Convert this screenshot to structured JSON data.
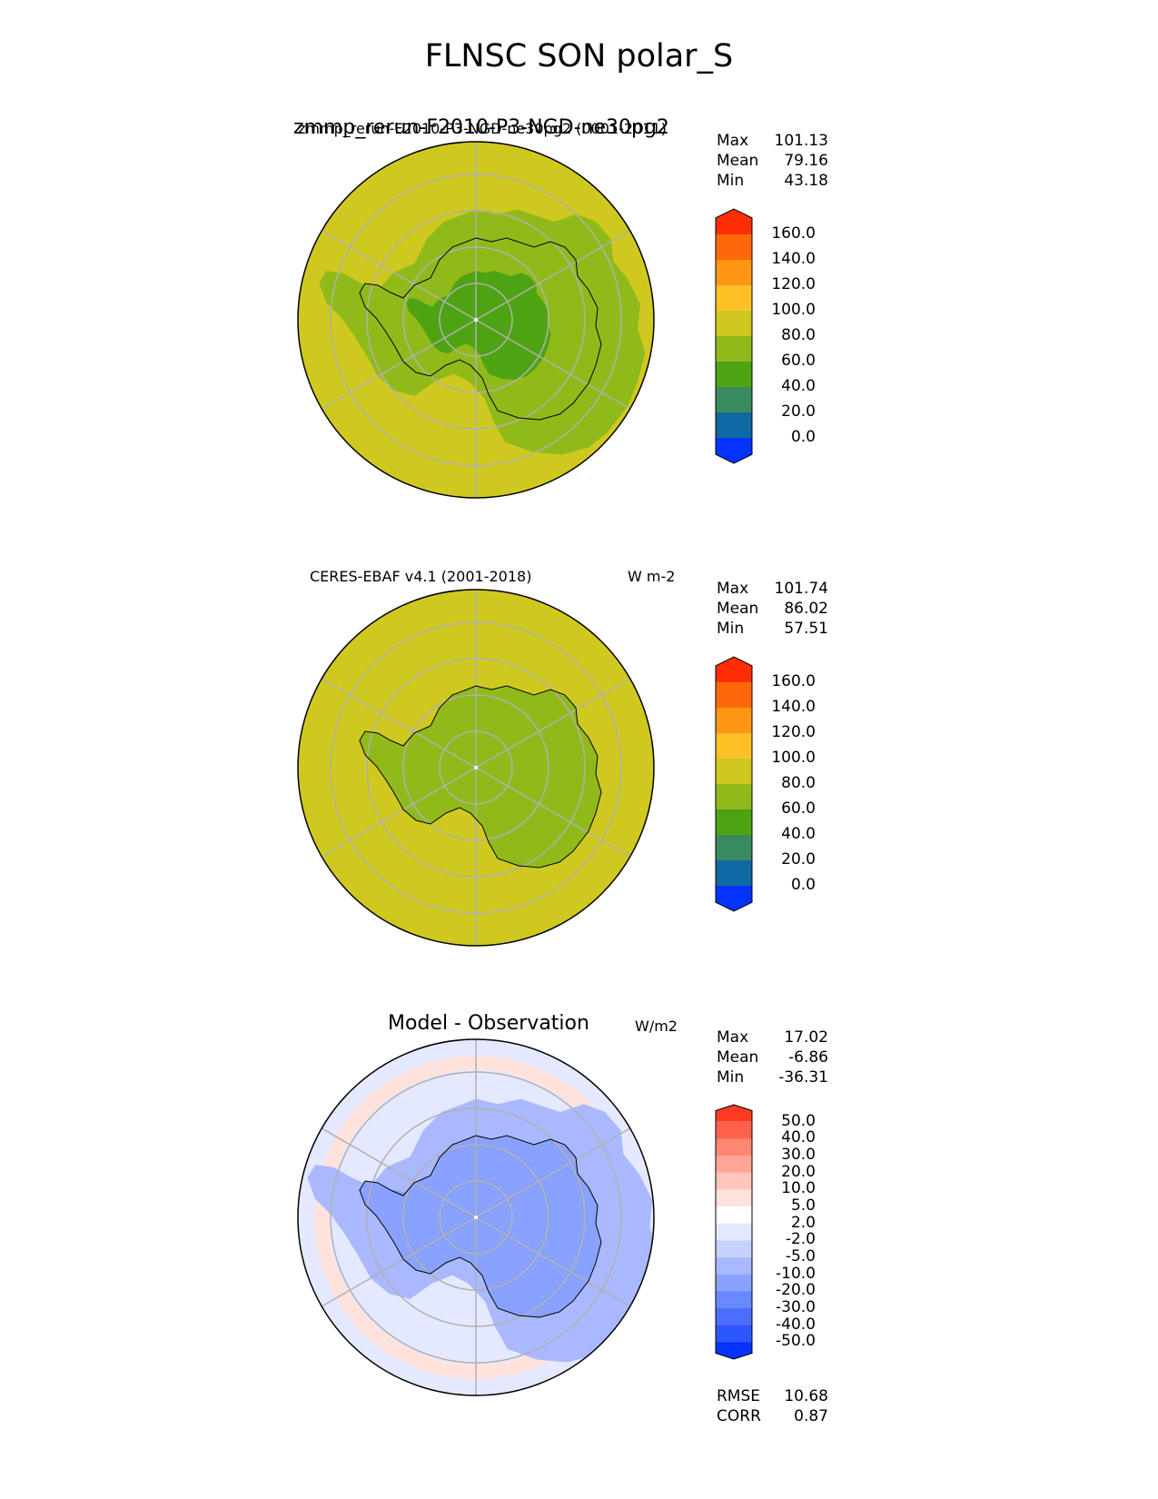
{
  "figure_title": "FLNSC SON polar_S",
  "colors": {
    "grid": "#b0b0b0",
    "coast": "#000000",
    "field_cmap": [
      "#0433ff",
      "#0f69a2",
      "#3a8a60",
      "#4ea313",
      "#90ba1a",
      "#cfc91f",
      "#fec126",
      "#ff9614",
      "#ff680a",
      "#ff2d04"
    ],
    "diff_cmap": [
      "#0433ff",
      "#2d56ff",
      "#4b6eff",
      "#6a88ff",
      "#8aa2ff",
      "#aab9ff",
      "#c8d2ff",
      "#e4e9ff",
      "#ffffff",
      "#ffe2dc",
      "#ffc6bb",
      "#ffa797",
      "#ff8673",
      "#ff614d",
      "#ff3a20"
    ]
  },
  "panels": [
    {
      "id": "test",
      "title_overlap_a": "zmmp_rerun-F2010-P3-NGD-ne30pg2",
      "title_overlap_b": "zmmp_rerun-F2010-P3-NGD-ne30pg2 (0001-2011)",
      "units": "",
      "stats": {
        "labels": [
          "Max",
          "Mean",
          "Min"
        ],
        "values": [
          "101.13",
          "79.16",
          "43.18"
        ]
      },
      "colorbar_labels": [
        "160.0",
        "140.0",
        "120.0",
        "100.0",
        "80.0",
        "60.0",
        "40.0",
        "20.0",
        "0.0"
      ]
    },
    {
      "id": "reference",
      "title": "CERES-EBAF v4.1 (2001-2018)",
      "units": "W m-2",
      "stats": {
        "labels": [
          "Max",
          "Mean",
          "Min"
        ],
        "values": [
          "101.74",
          "86.02",
          "57.51"
        ]
      },
      "colorbar_labels": [
        "160.0",
        "140.0",
        "120.0",
        "100.0",
        "80.0",
        "60.0",
        "40.0",
        "20.0",
        "0.0"
      ]
    },
    {
      "id": "diff",
      "title": "Model - Observation",
      "units": "W/m2",
      "stats": {
        "labels": [
          "Max",
          "Mean",
          "Min"
        ],
        "values": [
          "17.02",
          "-6.86",
          "-36.31"
        ]
      },
      "colorbar_labels": [
        "50.0",
        "40.0",
        "30.0",
        "20.0",
        "10.0",
        "5.0",
        "2.0",
        "-2.0",
        "-5.0",
        "-10.0",
        "-20.0",
        "-30.0",
        "-40.0",
        "-50.0"
      ],
      "extra_stats": {
        "labels": [
          "RMSE",
          "CORR"
        ],
        "values": [
          "10.68",
          "0.87"
        ]
      }
    }
  ],
  "chart_data": [
    {
      "type": "heatmap",
      "projection": "south polar stereographic",
      "title": "zmmp_rerun-F2010-P3-NGD-ne30pg2",
      "colorbar": {
        "levels": [
          0,
          20,
          40,
          60,
          80,
          100,
          120,
          140,
          160
        ],
        "extend": "both"
      },
      "stats": {
        "max": 101.13,
        "mean": 79.16,
        "min": 43.18
      },
      "regions": {
        "ocean_and_outer_ring": 90,
        "sea_ice_band": 70,
        "antarctic_interior": 55
      }
    },
    {
      "type": "heatmap",
      "projection": "south polar stereographic",
      "title": "CERES-EBAF v4.1 (2001-2018)",
      "units": "W m-2",
      "colorbar": {
        "levels": [
          0,
          20,
          40,
          60,
          80,
          100,
          120,
          140,
          160
        ],
        "extend": "both"
      },
      "stats": {
        "max": 101.74,
        "mean": 86.02,
        "min": 57.51
      },
      "regions": {
        "ocean": 90,
        "antarctic_interior": 70
      }
    },
    {
      "type": "heatmap",
      "projection": "south polar stereographic",
      "title": "Model - Observation",
      "units": "W/m2",
      "colorbar": {
        "levels": [
          -50,
          -40,
          -30,
          -20,
          -10,
          -5,
          -2,
          2,
          5,
          10,
          20,
          30,
          40,
          50
        ],
        "extend": "both"
      },
      "stats": {
        "max": 17.02,
        "mean": -6.86,
        "min": -36.31,
        "rmse": 10.68,
        "corr": 0.87
      },
      "regions": {
        "southern_ocean_ring": -7,
        "antarctic_interior": -15,
        "outer_ring_pacific_sector": 7
      }
    }
  ]
}
